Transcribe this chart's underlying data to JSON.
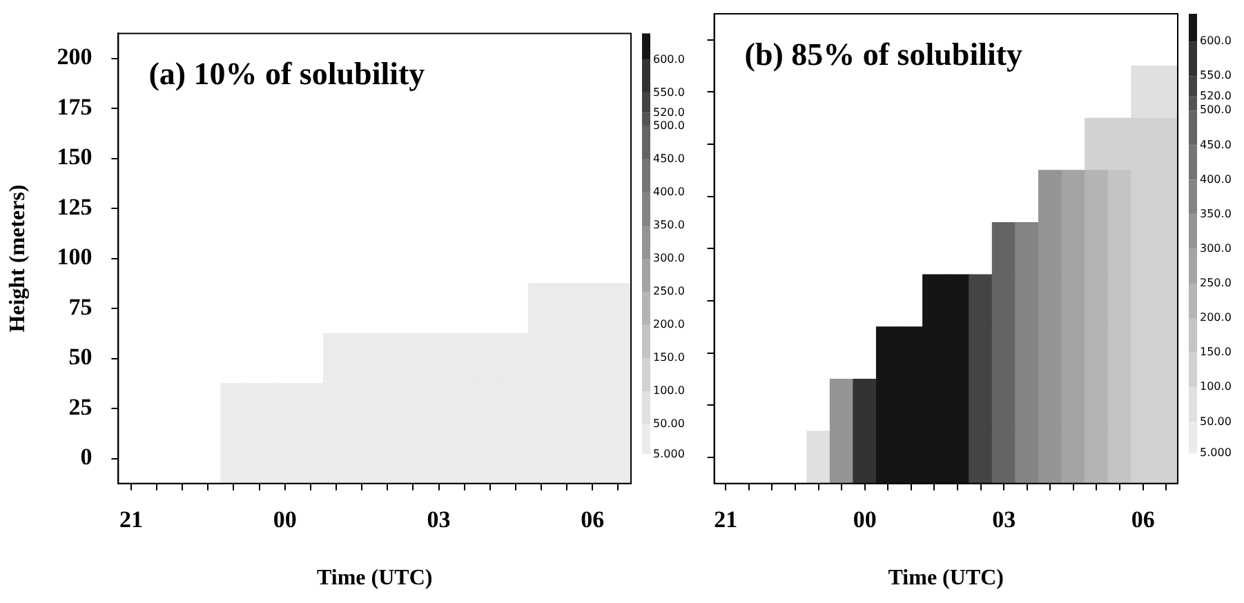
{
  "chart_data": [
    {
      "type": "heatmap",
      "title": "(a) 10% of solubility",
      "xlabel": "Time (UTC)",
      "ylabel": "Height (meters)",
      "categories": [
        "21",
        null,
        null,
        null,
        null,
        null,
        "00",
        null,
        null,
        null,
        null,
        null,
        "03",
        null,
        null,
        null,
        null,
        null,
        "06",
        null
      ],
      "y_categories": [
        "200",
        "175",
        "150",
        "125",
        "100",
        "75",
        "50",
        "25",
        "0"
      ],
      "colors": [
        "#ebebeb",
        "#e0e0e0",
        "#d2d2d2",
        "#c4c4c4",
        "#b4b4b4",
        "#a4a4a4",
        "#949494",
        "#848484",
        "#747474",
        "#646464",
        "#545454",
        "#444444",
        "#333333",
        "#151515"
      ],
      "clim": [
        5,
        640
      ],
      "cticks": [
        {
          "value": 5,
          "label": "5.000"
        },
        {
          "value": 50,
          "label": "50.00"
        },
        {
          "value": 100,
          "label": "100.0"
        },
        {
          "value": 150,
          "label": "150.0"
        },
        {
          "value": 200,
          "label": "200.0"
        },
        {
          "value": 250,
          "label": "250.0"
        },
        {
          "value": 300,
          "label": "300.0"
        },
        {
          "value": 350,
          "label": "350.0"
        },
        {
          "value": 400,
          "label": "400.0"
        },
        {
          "value": 450,
          "label": "450.0"
        },
        {
          "value": 500,
          "label": "500.0"
        },
        {
          "value": 520,
          "label": "520.0"
        },
        {
          "value": 550,
          "label": "550.0"
        },
        {
          "value": 600,
          "label": "600.0"
        }
      ],
      "cells": [
        [
          null,
          null,
          null,
          null,
          null,
          null,
          null,
          null,
          null,
          null,
          null,
          null,
          null,
          null,
          null,
          null,
          null,
          null,
          null,
          null
        ],
        [
          null,
          null,
          null,
          null,
          null,
          null,
          null,
          null,
          null,
          null,
          null,
          null,
          null,
          null,
          null,
          null,
          null,
          null,
          null,
          null
        ],
        [
          null,
          null,
          null,
          null,
          null,
          null,
          null,
          null,
          null,
          null,
          null,
          null,
          null,
          null,
          null,
          null,
          null,
          null,
          null,
          null
        ],
        [
          null,
          null,
          null,
          null,
          null,
          null,
          null,
          null,
          null,
          null,
          null,
          null,
          null,
          null,
          null,
          null,
          null,
          null,
          null,
          null
        ],
        [
          null,
          null,
          null,
          null,
          null,
          null,
          null,
          null,
          null,
          null,
          null,
          null,
          null,
          null,
          null,
          null,
          null,
          null,
          null,
          null
        ],
        [
          null,
          null,
          null,
          null,
          null,
          null,
          null,
          null,
          null,
          null,
          null,
          null,
          null,
          null,
          null,
          null,
          25,
          25,
          25,
          25
        ],
        [
          null,
          null,
          null,
          null,
          null,
          null,
          null,
          null,
          25,
          25,
          25,
          25,
          25,
          25,
          25,
          25,
          25,
          25,
          25,
          25
        ],
        [
          null,
          null,
          null,
          null,
          25,
          25,
          25,
          25,
          25,
          25,
          25,
          25,
          25,
          25,
          25,
          25,
          25,
          25,
          25,
          25
        ],
        [
          null,
          null,
          null,
          null,
          25,
          25,
          25,
          25,
          25,
          25,
          25,
          25,
          25,
          25,
          25,
          25,
          25,
          25,
          25,
          25
        ]
      ]
    },
    {
      "type": "heatmap",
      "title": "(b) 85% of solubility",
      "xlabel": "Time (UTC)",
      "tick_labels": "x",
      "categories": [
        "21",
        null,
        null,
        null,
        null,
        null,
        "00",
        null,
        null,
        null,
        null,
        null,
        "03",
        null,
        null,
        null,
        null,
        null,
        "06",
        null
      ],
      "y_categories": [
        "200",
        "175",
        "150",
        "125",
        "100",
        "75",
        "50",
        "25",
        "0"
      ],
      "colors": [
        "#ebebeb",
        "#e0e0e0",
        "#d2d2d2",
        "#c4c4c4",
        "#b4b4b4",
        "#a4a4a4",
        "#949494",
        "#848484",
        "#747474",
        "#646464",
        "#545454",
        "#444444",
        "#333333",
        "#151515"
      ],
      "clim": [
        5,
        640
      ],
      "cticks": [
        {
          "value": 5,
          "label": "5.000"
        },
        {
          "value": 50,
          "label": "50.00"
        },
        {
          "value": 100,
          "label": "100.0"
        },
        {
          "value": 150,
          "label": "150.0"
        },
        {
          "value": 200,
          "label": "200.0"
        },
        {
          "value": 250,
          "label": "250.0"
        },
        {
          "value": 300,
          "label": "300.0"
        },
        {
          "value": 350,
          "label": "350.0"
        },
        {
          "value": 400,
          "label": "400.0"
        },
        {
          "value": 450,
          "label": "450.0"
        },
        {
          "value": 500,
          "label": "500.0"
        },
        {
          "value": 520,
          "label": "520.0"
        },
        {
          "value": 550,
          "label": "550.0"
        },
        {
          "value": 600,
          "label": "600.0"
        }
      ],
      "cells": [
        [
          null,
          null,
          null,
          null,
          null,
          null,
          null,
          null,
          null,
          null,
          null,
          null,
          null,
          null,
          null,
          null,
          null,
          null,
          null,
          null
        ],
        [
          null,
          null,
          null,
          null,
          null,
          null,
          null,
          null,
          null,
          null,
          null,
          null,
          null,
          null,
          null,
          null,
          null,
          null,
          75,
          75
        ],
        [
          null,
          null,
          null,
          null,
          null,
          null,
          null,
          null,
          null,
          null,
          null,
          null,
          null,
          null,
          null,
          null,
          120,
          120,
          125,
          125
        ],
        [
          null,
          null,
          null,
          null,
          null,
          null,
          null,
          null,
          null,
          null,
          null,
          null,
          null,
          null,
          320,
          270,
          220,
          180,
          140,
          130
        ],
        [
          null,
          null,
          null,
          null,
          null,
          null,
          null,
          null,
          null,
          null,
          null,
          null,
          470,
          380,
          320,
          270,
          220,
          180,
          140,
          130
        ],
        [
          null,
          null,
          null,
          null,
          null,
          null,
          null,
          null,
          null,
          620,
          620,
          535,
          470,
          380,
          320,
          270,
          220,
          180,
          140,
          130
        ],
        [
          null,
          null,
          null,
          null,
          null,
          null,
          null,
          620,
          620,
          620,
          620,
          535,
          470,
          380,
          320,
          270,
          220,
          180,
          140,
          130
        ],
        [
          null,
          null,
          null,
          null,
          null,
          325,
          575,
          620,
          620,
          620,
          620,
          535,
          470,
          380,
          320,
          270,
          220,
          180,
          140,
          130
        ],
        [
          null,
          null,
          null,
          null,
          75,
          325,
          575,
          620,
          620,
          620,
          620,
          535,
          470,
          380,
          320,
          270,
          220,
          180,
          140,
          130
        ]
      ]
    }
  ]
}
